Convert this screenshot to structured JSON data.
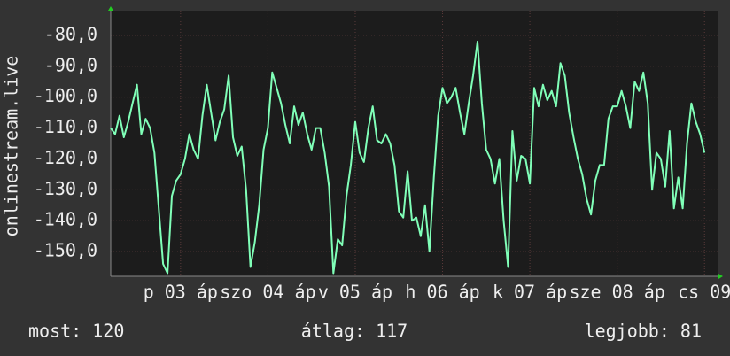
{
  "chart_data": {
    "type": "line",
    "y_label": "onlinestream.live",
    "x": [
      2.2,
      2.25,
      2.3,
      2.35,
      2.4,
      2.45,
      2.5,
      2.55,
      2.6,
      2.65,
      2.7,
      2.75,
      2.8,
      2.85,
      2.9,
      2.95,
      3.0,
      3.05,
      3.1,
      3.15,
      3.2,
      3.25,
      3.3,
      3.35,
      3.4,
      3.45,
      3.5,
      3.55,
      3.6,
      3.65,
      3.7,
      3.75,
      3.8,
      3.85,
      3.9,
      3.95,
      4.0,
      4.05,
      4.1,
      4.15,
      4.2,
      4.25,
      4.3,
      4.35,
      4.4,
      4.45,
      4.5,
      4.55,
      4.6,
      4.65,
      4.7,
      4.75,
      4.8,
      4.85,
      4.9,
      4.95,
      5.0,
      5.05,
      5.1,
      5.15,
      5.2,
      5.25,
      5.3,
      5.35,
      5.4,
      5.45,
      5.5,
      5.55,
      5.6,
      5.65,
      5.7,
      5.75,
      5.8,
      5.85,
      5.9,
      5.95,
      6.0,
      6.05,
      6.1,
      6.15,
      6.2,
      6.25,
      6.3,
      6.35,
      6.4,
      6.45,
      6.5,
      6.55,
      6.6,
      6.65,
      6.7,
      6.75,
      6.8,
      6.85,
      6.9,
      6.95,
      7.0,
      7.05,
      7.1,
      7.15,
      7.2,
      7.25,
      7.3,
      7.35,
      7.4,
      7.45,
      7.5,
      7.55,
      7.6,
      7.65,
      7.7,
      7.75,
      7.8,
      7.85,
      7.9,
      7.95,
      8.0,
      8.05,
      8.1,
      8.15,
      8.2,
      8.25,
      8.3,
      8.35,
      8.4,
      8.45,
      8.5,
      8.55,
      8.6,
      8.65,
      8.7,
      8.75,
      8.8,
      8.85,
      8.9,
      8.95,
      9.0
    ],
    "series": [
      {
        "name": "onlinestream.live",
        "color": "#80ffb8",
        "values": [
          -110,
          -112,
          -106,
          -113,
          -108,
          -102,
          -96,
          -112,
          -107,
          -110,
          -118,
          -136,
          -154,
          -157,
          -132,
          -127,
          -125,
          -120,
          -112,
          -117,
          -120,
          -106,
          -96,
          -105,
          -114,
          -108,
          -104,
          -93,
          -113,
          -119,
          -116,
          -130,
          -155,
          -147,
          -135,
          -117,
          -110,
          -92,
          -97,
          -102,
          -109,
          -115,
          -103,
          -109,
          -105,
          -112,
          -117,
          -110,
          -110,
          -118,
          -129,
          -157,
          -146,
          -148,
          -132,
          -122,
          -108,
          -118,
          -121,
          -110,
          -103,
          -114,
          -115,
          -112,
          -115,
          -122,
          -137,
          -139,
          -124,
          -140,
          -139,
          -145,
          -135,
          -150,
          -126,
          -106,
          -97,
          -102,
          -100,
          -97,
          -105,
          -112,
          -102,
          -93,
          -82,
          -102,
          -117,
          -120,
          -128,
          -120,
          -140,
          -155,
          -111,
          -127,
          -119,
          -120,
          -128,
          -97,
          -103,
          -96,
          -101,
          -98,
          -103,
          -89,
          -93,
          -105,
          -113,
          -120,
          -125,
          -133,
          -138,
          -127,
          -122,
          -122,
          -107,
          -103,
          -103,
          -98,
          -103,
          -110,
          -95,
          -98,
          -92,
          -102,
          -130,
          -118,
          -120,
          -129,
          -111,
          -136,
          -126,
          -136,
          -115,
          -102,
          -108,
          -112,
          -118
        ]
      }
    ],
    "xlim": [
      2.2,
      9.15
    ],
    "xticks": [
      {
        "value": 3,
        "label": "p 03 áp"
      },
      {
        "value": 4,
        "label": "szo 04 áp"
      },
      {
        "value": 5,
        "label": "v 05 áp"
      },
      {
        "value": 6,
        "label": "h 06 áp"
      },
      {
        "value": 7,
        "label": "k 07 áp"
      },
      {
        "value": 8,
        "label": "sze 08 áp"
      },
      {
        "value": 9,
        "label": "cs 09"
      }
    ],
    "ylim": [
      -158,
      -72
    ],
    "yticks": [
      {
        "value": -80,
        "label": "-80,0"
      },
      {
        "value": -90,
        "label": "-90,0"
      },
      {
        "value": -100,
        "label": "-100,0"
      },
      {
        "value": -110,
        "label": "-110,0"
      },
      {
        "value": -120,
        "label": "-120,0"
      },
      {
        "value": -130,
        "label": "-130,0"
      },
      {
        "value": -140,
        "label": "-140,0"
      },
      {
        "value": -150,
        "label": "-150,0"
      }
    ],
    "grid": true,
    "footer": [
      "most: 120",
      "átlag: 117",
      "legjobb: 81"
    ]
  }
}
